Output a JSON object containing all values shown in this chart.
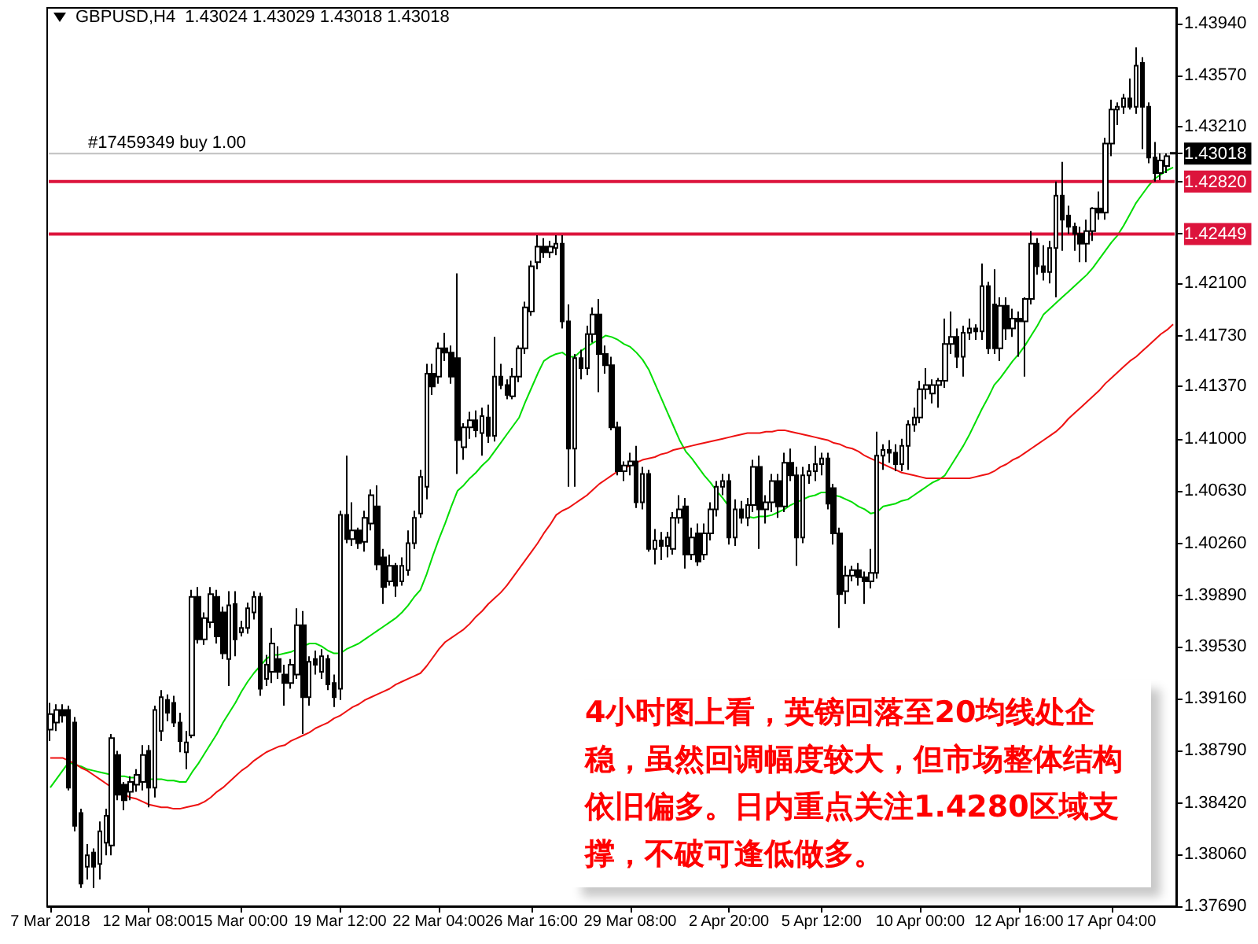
{
  "chart_data": {
    "type": "candlestick",
    "title": "GBPUSD,H4  1.43024 1.43029 1.43018 1.43018",
    "color": "#000000",
    "categories": [
      "7 Mar 2018",
      null,
      null,
      null,
      null,
      null,
      null,
      null,
      null,
      null,
      null,
      null,
      null,
      null,
      null,
      null,
      "12 Mar 08:00",
      null,
      null,
      null,
      null,
      null,
      null,
      null,
      null,
      null,
      null,
      null,
      null,
      null,
      null,
      "15 Mar 00:00",
      null,
      null,
      null,
      null,
      null,
      null,
      null,
      null,
      null,
      null,
      null,
      null,
      null,
      null,
      null,
      "19 Mar 12:00",
      null,
      null,
      null,
      null,
      null,
      null,
      null,
      null,
      null,
      null,
      null,
      null,
      null,
      null,
      null,
      "22 Mar 04:00",
      null,
      null,
      null,
      null,
      null,
      null,
      null,
      null,
      null,
      null,
      null,
      null,
      null,
      null,
      "26 Mar 16:00",
      null,
      null,
      null,
      null,
      null,
      null,
      null,
      null,
      null,
      null,
      null,
      null,
      null,
      null,
      null,
      "29 Mar 08:00",
      null,
      null,
      null,
      null,
      null,
      null,
      null,
      null,
      null,
      null,
      null,
      null,
      null,
      null,
      null,
      "2 Apr 20:00",
      null,
      null,
      null,
      null,
      null,
      null,
      null,
      null,
      null,
      null,
      null,
      null,
      null,
      null,
      "5 Apr 12:00",
      null,
      null,
      null,
      null,
      null,
      null,
      null,
      null,
      null,
      null,
      null,
      null,
      null,
      null,
      null,
      "10 Apr 00:00",
      null,
      null,
      null,
      null,
      null,
      null,
      null,
      null,
      null,
      null,
      null,
      null,
      null,
      null,
      null,
      "12 Apr 16:00",
      null,
      null,
      null,
      null,
      null,
      null,
      null,
      null,
      null,
      null,
      null,
      null,
      null,
      null,
      "17 Apr 04:00",
      null,
      null,
      null,
      null,
      null,
      null,
      null,
      null,
      null,
      null
    ],
    "ohlc": [
      [
        1.3894,
        1.3913,
        1.3886,
        1.3905
      ],
      [
        1.3899,
        1.3912,
        1.3893,
        1.3908
      ],
      [
        1.3908,
        1.3912,
        1.3899,
        1.3904
      ],
      [
        1.3908,
        1.3911,
        1.3851,
        1.3853
      ],
      [
        1.3899,
        1.3903,
        1.3822,
        1.3826
      ],
      [
        1.3835,
        1.3838,
        1.3782,
        1.3785
      ],
      [
        1.3797,
        1.3813,
        1.3788,
        1.3805
      ],
      [
        1.3807,
        1.381,
        1.3782,
        1.3797
      ],
      [
        1.3799,
        1.3829,
        1.3788,
        1.3822
      ],
      [
        1.3814,
        1.3838,
        1.3805,
        1.3833
      ],
      [
        1.3812,
        1.3891,
        1.3805,
        1.3888
      ],
      [
        1.3876,
        1.3879,
        1.3844,
        1.3848
      ],
      [
        1.3855,
        1.3857,
        1.3837,
        1.3844
      ],
      [
        1.385,
        1.3861,
        1.3844,
        1.3857
      ],
      [
        1.3855,
        1.3866,
        1.385,
        1.3862
      ],
      [
        1.3857,
        1.3883,
        1.3851,
        1.3876
      ],
      [
        1.3879,
        1.3883,
        1.3839,
        1.3853
      ],
      [
        1.3853,
        1.3911,
        1.3846,
        1.3908
      ],
      [
        1.3893,
        1.3922,
        1.3886,
        1.3917
      ],
      [
        1.3915,
        1.3919,
        1.39,
        1.3906
      ],
      [
        1.3913,
        1.3918,
        1.3896,
        1.3899
      ],
      [
        1.3899,
        1.3906,
        1.3878,
        1.3886
      ],
      [
        1.3878,
        1.3893,
        1.3866,
        1.3885
      ],
      [
        1.389,
        1.3993,
        1.3888,
        1.3988
      ],
      [
        1.3988,
        1.3995,
        1.3955,
        1.3958
      ],
      [
        1.3958,
        1.3977,
        1.3954,
        1.3973
      ],
      [
        1.397,
        1.3995,
        1.3966,
        1.399
      ],
      [
        1.3988,
        1.3993,
        1.3955,
        1.396
      ],
      [
        1.3977,
        1.3981,
        1.3944,
        1.3948
      ],
      [
        1.3944,
        1.3992,
        1.3925,
        1.3982
      ],
      [
        1.3983,
        1.3992,
        1.3946,
        1.3958
      ],
      [
        1.3963,
        1.3971,
        1.396,
        1.3966
      ],
      [
        1.3966,
        1.3984,
        1.3962,
        1.398
      ],
      [
        1.3977,
        1.3992,
        1.3972,
        1.3988
      ],
      [
        1.3988,
        1.3991,
        1.3918,
        1.3923
      ],
      [
        1.393,
        1.3947,
        1.3925,
        1.394
      ],
      [
        1.3935,
        1.3966,
        1.3927,
        1.3955
      ],
      [
        1.3944,
        1.3953,
        1.393,
        1.3935
      ],
      [
        1.3933,
        1.394,
        1.3911,
        1.3927
      ],
      [
        1.3927,
        1.3944,
        1.3923,
        1.394
      ],
      [
        1.3933,
        1.398,
        1.393,
        1.3968
      ],
      [
        1.3968,
        1.3978,
        1.3891,
        1.3917
      ],
      [
        1.3917,
        1.3946,
        1.3911,
        1.3942
      ],
      [
        1.3944,
        1.395,
        1.3933,
        1.394
      ],
      [
        1.3935,
        1.3951,
        1.393,
        1.3946
      ],
      [
        1.3944,
        1.3947,
        1.3922,
        1.3926
      ],
      [
        1.3927,
        1.3933,
        1.391,
        1.3917
      ],
      [
        1.3923,
        1.4049,
        1.3915,
        1.4046
      ],
      [
        1.4046,
        1.4088,
        1.4026,
        1.4029
      ],
      [
        1.4029,
        1.4055,
        1.4024,
        1.4035
      ],
      [
        1.4035,
        1.4037,
        1.4022,
        1.4026
      ],
      [
        1.4027,
        1.4049,
        1.402,
        1.4044
      ],
      [
        1.404,
        1.4064,
        1.4035,
        1.406
      ],
      [
        1.4052,
        1.4067,
        1.4007,
        1.4011
      ],
      [
        1.4016,
        1.4022,
        1.3983,
        1.3995
      ],
      [
        1.3999,
        1.4018,
        1.3996,
        1.401
      ],
      [
        1.401,
        1.4012,
        1.3988,
        1.3996
      ],
      [
        1.3999,
        1.4016,
        1.3996,
        1.401
      ],
      [
        1.4007,
        1.4035,
        1.4003,
        1.4026
      ],
      [
        1.4026,
        1.4049,
        1.4022,
        1.4044
      ],
      [
        1.4047,
        1.4078,
        1.4044,
        1.4073
      ],
      [
        1.4066,
        1.4153,
        1.4057,
        1.4146
      ],
      [
        1.4146,
        1.4153,
        1.4131,
        1.4137
      ],
      [
        1.4144,
        1.4168,
        1.4139,
        1.4164
      ],
      [
        1.4164,
        1.4175,
        1.4155,
        1.4161
      ],
      [
        1.4161,
        1.4166,
        1.4139,
        1.4144
      ],
      [
        1.4157,
        1.4217,
        1.4075,
        1.4099
      ],
      [
        1.4094,
        1.4111,
        1.4085,
        1.4108
      ],
      [
        1.4108,
        1.4119,
        1.41,
        1.4113
      ],
      [
        1.4113,
        1.412,
        1.4101,
        1.4106
      ],
      [
        1.4104,
        1.4122,
        1.4088,
        1.4116
      ],
      [
        1.4115,
        1.4124,
        1.4097,
        1.4102
      ],
      [
        1.4102,
        1.4172,
        1.4098,
        1.4144
      ],
      [
        1.4144,
        1.4153,
        1.4135,
        1.4138
      ],
      [
        1.4138,
        1.4142,
        1.4128,
        1.4131
      ],
      [
        1.413,
        1.415,
        1.4128,
        1.4144
      ],
      [
        1.4144,
        1.4166,
        1.414,
        1.4164
      ],
      [
        1.4164,
        1.4197,
        1.416,
        1.4193
      ],
      [
        1.419,
        1.4226,
        1.4187,
        1.4222
      ],
      [
        1.4225,
        1.4244,
        1.422,
        1.4236
      ],
      [
        1.4236,
        1.4242,
        1.4228,
        1.4232
      ],
      [
        1.4232,
        1.424,
        1.4228,
        1.4236
      ],
      [
        1.4235,
        1.4244,
        1.423,
        1.4238
      ],
      [
        1.4238,
        1.4244,
        1.4178,
        1.4183
      ],
      [
        1.4183,
        1.4195,
        1.4066,
        1.4093
      ],
      [
        1.4093,
        1.416,
        1.4066,
        1.4157
      ],
      [
        1.4157,
        1.4163,
        1.4142,
        1.415
      ],
      [
        1.415,
        1.418,
        1.4145,
        1.4174
      ],
      [
        1.4174,
        1.4193,
        1.4168,
        1.4188
      ],
      [
        1.4188,
        1.4199,
        1.4133,
        1.416
      ],
      [
        1.416,
        1.4166,
        1.4146,
        1.4152
      ],
      [
        1.4152,
        1.4158,
        1.4106,
        1.4108
      ],
      [
        1.4108,
        1.4112,
        1.4074,
        1.4077
      ],
      [
        1.4077,
        1.4084,
        1.407,
        1.4081
      ],
      [
        1.4081,
        1.409,
        1.4074,
        1.4084
      ],
      [
        1.4084,
        1.4095,
        1.4051,
        1.4055
      ],
      [
        1.4055,
        1.408,
        1.405,
        1.4075
      ],
      [
        1.4075,
        1.4078,
        1.402,
        1.4022
      ],
      [
        1.4022,
        1.4036,
        1.4011,
        1.4028
      ],
      [
        1.4028,
        1.4034,
        1.4014,
        1.4024
      ],
      [
        1.4024,
        1.4034,
        1.4016,
        1.403
      ],
      [
        1.4022,
        1.4048,
        1.4018,
        1.4044
      ],
      [
        1.4044,
        1.406,
        1.404,
        1.405
      ],
      [
        1.4052,
        1.4058,
        1.4008,
        1.4018
      ],
      [
        1.4018,
        1.4037,
        1.4014,
        1.403
      ],
      [
        1.4033,
        1.404,
        1.401,
        1.4013
      ],
      [
        1.4018,
        1.404,
        1.4014,
        1.4033
      ],
      [
        1.4033,
        1.4055,
        1.4028,
        1.405
      ],
      [
        1.405,
        1.407,
        1.4045,
        1.4066
      ],
      [
        1.4066,
        1.4075,
        1.406,
        1.407
      ],
      [
        1.407,
        1.4075,
        1.4025,
        1.403
      ],
      [
        1.403,
        1.4057,
        1.4024,
        1.405
      ],
      [
        1.405,
        1.4056,
        1.404,
        1.4044
      ],
      [
        1.4044,
        1.4058,
        1.4038,
        1.4053
      ],
      [
        1.4053,
        1.4085,
        1.4048,
        1.408
      ],
      [
        1.408,
        1.4088,
        1.4022,
        1.405
      ],
      [
        1.405,
        1.406,
        1.404,
        1.4055
      ],
      [
        1.4055,
        1.4075,
        1.4048,
        1.407
      ],
      [
        1.407,
        1.4075,
        1.4044,
        1.4052
      ],
      [
        1.4052,
        1.409,
        1.4048,
        1.4083
      ],
      [
        1.4083,
        1.4093,
        1.407,
        1.4074
      ],
      [
        1.4074,
        1.408,
        1.401,
        1.403
      ],
      [
        1.403,
        1.408,
        1.4026,
        1.4074
      ],
      [
        1.4074,
        1.4082,
        1.4068,
        1.4077
      ],
      [
        1.4077,
        1.4095,
        1.407,
        1.4082
      ],
      [
        1.4082,
        1.409,
        1.4074,
        1.4086
      ],
      [
        1.4086,
        1.409,
        1.405,
        1.4054
      ],
      [
        1.4065,
        1.4068,
        1.4025,
        1.4033
      ],
      [
        1.4033,
        1.4037,
        1.3966,
        1.399
      ],
      [
        1.3992,
        1.401,
        1.3983,
        1.4003
      ],
      [
        1.4003,
        1.401,
        1.3999,
        1.4007
      ],
      [
        1.4007,
        1.4012,
        1.3996,
        1.4002
      ],
      [
        1.4002,
        1.4006,
        1.3983,
        1.3999
      ],
      [
        1.3999,
        1.4022,
        1.3994,
        1.4005
      ],
      [
        1.4005,
        1.4105,
        1.4001,
        1.4088
      ],
      [
        1.4088,
        1.4096,
        1.4078,
        1.4092
      ],
      [
        1.4092,
        1.4099,
        1.4083,
        1.409
      ],
      [
        1.409,
        1.4096,
        1.4077,
        1.4082
      ],
      [
        1.4082,
        1.41,
        1.4077,
        1.4095
      ],
      [
        1.4095,
        1.4113,
        1.4078,
        1.411
      ],
      [
        1.411,
        1.4122,
        1.4105,
        1.4115
      ],
      [
        1.4115,
        1.4141,
        1.4111,
        1.4135
      ],
      [
        1.4135,
        1.415,
        1.4128,
        1.4138
      ],
      [
        1.4132,
        1.4142,
        1.4125,
        1.4138
      ],
      [
        1.4138,
        1.4143,
        1.4122,
        1.4141
      ],
      [
        1.4141,
        1.4185,
        1.4136,
        1.4167
      ],
      [
        1.4167,
        1.419,
        1.416,
        1.4172
      ],
      [
        1.4172,
        1.4178,
        1.415,
        1.4158
      ],
      [
        1.4158,
        1.418,
        1.4144,
        1.4175
      ],
      [
        1.4175,
        1.4185,
        1.417,
        1.4178
      ],
      [
        1.4178,
        1.4181,
        1.417,
        1.4176
      ],
      [
        1.4176,
        1.4224,
        1.417,
        1.4208
      ],
      [
        1.4208,
        1.4211,
        1.416,
        1.4164
      ],
      [
        1.4195,
        1.422,
        1.416,
        1.4164
      ],
      [
        1.4164,
        1.42,
        1.4155,
        1.4194
      ],
      [
        1.4194,
        1.42,
        1.417,
        1.4178
      ],
      [
        1.4178,
        1.4192,
        1.4172,
        1.4185
      ],
      [
        1.4185,
        1.419,
        1.4158,
        1.4183
      ],
      [
        1.4183,
        1.42,
        1.4144,
        1.4199
      ],
      [
        1.4199,
        1.4247,
        1.4195,
        1.4238
      ],
      [
        1.4238,
        1.4242,
        1.4216,
        1.4222
      ],
      [
        1.4222,
        1.4237,
        1.4212,
        1.4218
      ],
      [
        1.4218,
        1.424,
        1.421,
        1.4235
      ],
      [
        1.4235,
        1.4282,
        1.42,
        1.4272
      ],
      [
        1.4272,
        1.4296,
        1.4233,
        1.4255
      ],
      [
        1.4258,
        1.4265,
        1.4245,
        1.425
      ],
      [
        1.425,
        1.4253,
        1.4233,
        1.4245
      ],
      [
        1.4245,
        1.425,
        1.4225,
        1.4238
      ],
      [
        1.4238,
        1.4255,
        1.4225,
        1.4247
      ],
      [
        1.4247,
        1.4264,
        1.424,
        1.4263
      ],
      [
        1.4263,
        1.4275,
        1.4255,
        1.426
      ],
      [
        1.426,
        1.4313,
        1.4255,
        1.4309
      ],
      [
        1.4309,
        1.434,
        1.43,
        1.4333
      ],
      [
        1.4333,
        1.4338,
        1.4322,
        1.4335
      ],
      [
        1.4335,
        1.4344,
        1.433,
        1.4341
      ],
      [
        1.4341,
        1.4355,
        1.4333,
        1.4335
      ],
      [
        1.4335,
        1.4377,
        1.433,
        1.4364
      ],
      [
        1.4366,
        1.437,
        1.4305,
        1.4335
      ],
      [
        1.4335,
        1.4338,
        1.4295,
        1.4299
      ],
      [
        1.4299,
        1.431,
        1.4282,
        1.4288
      ],
      [
        1.4288,
        1.4302,
        1.4283,
        1.4297
      ],
      [
        1.4293,
        1.4302,
        1.4288,
        1.43
      ],
      [
        1.43024,
        1.43029,
        1.43018,
        1.43018
      ]
    ],
    "series": [
      {
        "type": "line",
        "color": "#00dd00",
        "values": [
          1.3853,
          1.3859,
          1.3865,
          1.3871,
          1.3869,
          1.3868,
          1.3866,
          1.3865,
          1.3864,
          1.3863,
          1.3862,
          1.3861,
          1.3861,
          1.386,
          1.386,
          null,
          1.3859,
          1.3859,
          1.3859,
          1.3858,
          1.3858,
          1.3857,
          1.3857,
          1.3864,
          1.387,
          1.3877,
          1.3884,
          1.3891,
          1.3899,
          1.3906,
          1.3913,
          1.3921,
          1.3928,
          1.3934,
          1.3939,
          1.3944,
          1.3947,
          1.3947,
          1.3948,
          1.3949,
          1.3951,
          1.3953,
          1.3955,
          1.3955,
          1.3953,
          1.395,
          1.3948,
          1.3948,
          1.3951,
          1.3953,
          1.3955,
          1.3958,
          1.3961,
          1.3964,
          1.3967,
          1.397,
          1.3973,
          1.3977,
          1.3982,
          1.3988,
          1.3993,
          1.4004,
          1.4017,
          1.4029,
          1.404,
          1.4052,
          1.4063,
          1.4067,
          1.4072,
          1.4076,
          1.4081,
          1.4085,
          1.4091,
          1.4097,
          1.4103,
          1.4109,
          1.4115,
          1.4126,
          1.4136,
          1.4146,
          1.4155,
          1.4158,
          1.416,
          1.4161,
          1.4158,
          1.4158,
          1.4162,
          1.4165,
          1.4168,
          1.417,
          1.4173,
          1.4172,
          1.417,
          1.4167,
          1.4165,
          1.4161,
          1.4156,
          1.4149,
          1.4139,
          1.4129,
          1.4119,
          1.4109,
          1.4099,
          1.4091,
          1.4086,
          1.408,
          1.4074,
          1.4069,
          1.4063,
          1.4058,
          1.4052,
          null,
          null,
          1.4045,
          1.4044,
          1.4045,
          1.4045,
          1.4046,
          1.4048,
          1.405,
          1.4053,
          1.4055,
          1.4057,
          1.4059,
          1.406,
          1.4062,
          1.4062,
          1.406,
          1.4059,
          1.4057,
          1.4055,
          1.4052,
          1.405,
          1.4047,
          1.4048,
          1.4052,
          1.4053,
          1.4054,
          1.4056,
          1.4057,
          1.406,
          1.4063,
          1.4066,
          1.4069,
          1.4071,
          1.4074,
          1.4081,
          1.4088,
          1.4095,
          1.4103,
          1.4112,
          1.4121,
          1.4129,
          1.4138,
          1.4143,
          1.4149,
          1.4155,
          1.416,
          1.4166,
          1.4173,
          1.418,
          1.4188,
          1.4192,
          1.4196,
          1.42,
          1.4204,
          1.4208,
          1.4212,
          1.4216,
          1.4221,
          1.4227,
          1.4233,
          1.4239,
          1.4244,
          1.4251,
          1.4259,
          1.4267,
          1.4273,
          1.4279,
          1.4284,
          1.4287,
          1.429,
          1.4292
        ]
      },
      {
        "type": "line",
        "color": "#ee1111",
        "values": [
          1.3874,
          1.3874,
          1.3874,
          1.3872,
          1.387,
          1.3867,
          1.3865,
          1.3862,
          1.3859,
          1.3856,
          1.3853,
          null,
          1.3848,
          1.3846,
          1.3845,
          1.3843,
          1.3841,
          1.384,
          1.3839,
          1.3839,
          1.3838,
          1.3838,
          1.3839,
          1.384,
          1.3841,
          1.3843,
          1.3846,
          1.385,
          1.3853,
          1.3857,
          1.3861,
          1.3865,
          1.3868,
          1.3872,
          1.3875,
          1.3878,
          1.388,
          1.3882,
          1.3883,
          1.3886,
          1.3888,
          1.389,
          1.3892,
          1.3895,
          1.3897,
          1.3899,
          1.3902,
          1.3904,
          1.3907,
          1.391,
          1.3912,
          1.3915,
          1.3917,
          1.3919,
          1.3921,
          1.3923,
          1.3926,
          1.3928,
          1.393,
          1.3932,
          1.3934,
          1.3939,
          1.3945,
          1.3951,
          1.3956,
          1.3959,
          1.3962,
          1.3965,
          1.3969,
          1.3974,
          1.3978,
          1.3983,
          1.3987,
          1.3991,
          1.3996,
          1.4002,
          1.4008,
          1.4014,
          1.402,
          1.4026,
          1.4033,
          1.4039,
          1.4046,
          1.4049,
          1.4051,
          1.4054,
          1.4057,
          1.406,
          1.4064,
          1.4068,
          1.4071,
          1.4074,
          1.4077,
          1.4079,
          1.4081,
          1.4083,
          1.4085,
          1.4086,
          1.4087,
          1.4089,
          1.409,
          1.4092,
          1.4093,
          1.4094,
          1.4095,
          1.4096,
          1.4097,
          1.4098,
          1.4099,
          1.41,
          1.4101,
          1.4102,
          1.4103,
          1.4104,
          1.4104,
          1.4104,
          1.4105,
          1.4105,
          1.4106,
          1.4106,
          1.4105,
          1.4104,
          1.4103,
          1.4102,
          1.4101,
          1.41,
          1.4099,
          1.4097,
          1.4096,
          1.4094,
          1.4093,
          1.4091,
          1.4088,
          1.4086,
          1.4084,
          1.4082,
          1.408,
          1.4078,
          1.4076,
          1.4075,
          1.4074,
          1.4073,
          1.4072,
          1.4072,
          1.4072,
          1.4072,
          1.4072,
          1.4072,
          1.4072,
          1.4072,
          1.4073,
          1.4074,
          1.4075,
          1.4077,
          1.408,
          1.4082,
          1.4085,
          1.4087,
          1.409,
          1.4093,
          1.4096,
          1.4099,
          1.4102,
          1.4105,
          1.4109,
          1.4114,
          1.4118,
          1.4122,
          1.4126,
          1.413,
          1.4134,
          1.4139,
          1.4143,
          1.4147,
          1.4151,
          1.4155,
          1.4158,
          1.4162,
          1.4166,
          1.417,
          1.4174,
          1.4177,
          1.4181
        ]
      }
    ],
    "ylim": [
      1.3769,
      1.4405
    ],
    "yticks": [
      {
        "value": 1.3769,
        "label": "1.37690"
      },
      {
        "value": 1.3806,
        "label": "1.38060"
      },
      {
        "value": 1.3842,
        "label": "1.38420"
      },
      {
        "value": 1.3879,
        "label": "1.38790"
      },
      {
        "value": 1.3916,
        "label": "1.39160"
      },
      {
        "value": 1.3953,
        "label": "1.39530"
      },
      {
        "value": 1.3989,
        "label": "1.39890"
      },
      {
        "value": 1.4026,
        "label": "1.40260"
      },
      {
        "value": 1.4063,
        "label": "1.40630"
      },
      {
        "value": 1.41,
        "label": "1.41000"
      },
      {
        "value": 1.4137,
        "label": "1.41370"
      },
      {
        "value": 1.4173,
        "label": "1.41730"
      },
      {
        "value": 1.421,
        "label": "1.42100"
      },
      {
        "value": 1.42449,
        "label": "1.42449"
      },
      {
        "value": 1.4282,
        "label": "1.42820"
      },
      {
        "value": 1.43018,
        "label": "1.43018"
      },
      {
        "value": 1.4321,
        "label": "1.43210"
      },
      {
        "value": 1.4357,
        "label": "1.43570"
      },
      {
        "value": 1.4394,
        "label": "1.43940"
      }
    ],
    "ref_lines": [
      {
        "axis": "y",
        "value": 1.43018,
        "label": "#17459349 buy 1.00",
        "color": "#c0c0c0"
      },
      {
        "axis": "y",
        "value": 1.4282,
        "color": "#dc143c"
      },
      {
        "axis": "y",
        "value": 1.42449,
        "color": "#dc143c"
      }
    ],
    "annotations": [
      "4小时图上看，英镑回落至20均线处企稳，虽然回调幅度较大，但市场整体结构依旧偏多。日内重点关注1.4280区域支撑，不破可逢低做多。"
    ]
  }
}
